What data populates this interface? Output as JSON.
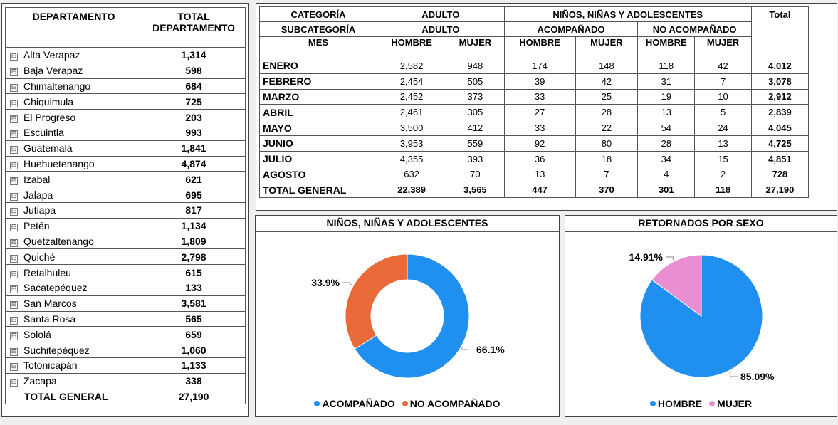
{
  "departments": {
    "header_name": "DEPARTAMENTO",
    "header_total": "TOTAL DEPARTAMENTO",
    "rows": [
      {
        "name": "Alta Verapaz",
        "total": "1,314"
      },
      {
        "name": "Baja Verapaz",
        "total": "598"
      },
      {
        "name": "Chimaltenango",
        "total": "684"
      },
      {
        "name": "Chiquimula",
        "total": "725"
      },
      {
        "name": "El Progreso",
        "total": "203"
      },
      {
        "name": "Escuintla",
        "total": "993"
      },
      {
        "name": "Guatemala",
        "total": "1,841"
      },
      {
        "name": "Huehuetenango",
        "total": "4,874"
      },
      {
        "name": "Izabal",
        "total": "621"
      },
      {
        "name": "Jalapa",
        "total": "695"
      },
      {
        "name": "Jutiapa",
        "total": "817"
      },
      {
        "name": "Petén",
        "total": "1,134"
      },
      {
        "name": "Quetzaltenango",
        "total": "1,809"
      },
      {
        "name": "Quiché",
        "total": "2,798"
      },
      {
        "name": "Retalhuleu",
        "total": "615"
      },
      {
        "name": "Sacatepéquez",
        "total": "133"
      },
      {
        "name": "San Marcos",
        "total": "3,581"
      },
      {
        "name": "Santa Rosa",
        "total": "565"
      },
      {
        "name": "Sololá",
        "total": "659"
      },
      {
        "name": "Suchitepéquez",
        "total": "1,060"
      },
      {
        "name": "Totonicapán",
        "total": "1,133"
      },
      {
        "name": "Zacapa",
        "total": "338"
      }
    ],
    "total_label": "TOTAL GENERAL",
    "total_value": "27,190",
    "expand_icon": "⊞"
  },
  "monthly": {
    "row1": {
      "label": "CATEGORÍA",
      "adulto": "ADULTO",
      "nna": "NIÑOS, NIÑAS Y ADOLESCENTES",
      "total": "Total"
    },
    "row2": {
      "label": "SUBCATEGORÍA",
      "adulto": "ADULTO",
      "acomp": "ACOMPAÑADO",
      "no_acomp": "NO ACOMPAÑADO"
    },
    "row3": {
      "label": "MES",
      "c1": "HOMBRE",
      "c2": "MUJER",
      "c3": "HOMBRE",
      "c4": "MUJER",
      "c5": "HOMBRE",
      "c6": "MUJER"
    },
    "rows": [
      {
        "mes": "ENERO",
        "v": [
          "2,582",
          "948",
          "174",
          "148",
          "118",
          "42"
        ],
        "total": "4,012"
      },
      {
        "mes": "FEBRERO",
        "v": [
          "2,454",
          "505",
          "39",
          "42",
          "31",
          "7"
        ],
        "total": "3,078"
      },
      {
        "mes": "MARZO",
        "v": [
          "2,452",
          "373",
          "33",
          "25",
          "19",
          "10"
        ],
        "total": "2,912"
      },
      {
        "mes": "ABRIL",
        "v": [
          "2,461",
          "305",
          "27",
          "28",
          "13",
          "5"
        ],
        "total": "2,839"
      },
      {
        "mes": "MAYO",
        "v": [
          "3,500",
          "412",
          "33",
          "22",
          "54",
          "24"
        ],
        "total": "4,045"
      },
      {
        "mes": "JUNIO",
        "v": [
          "3,953",
          "559",
          "92",
          "80",
          "28",
          "13"
        ],
        "total": "4,725"
      },
      {
        "mes": "JULIO",
        "v": [
          "4,355",
          "393",
          "36",
          "18",
          "34",
          "15"
        ],
        "total": "4,851"
      },
      {
        "mes": "AGOSTO",
        "v": [
          "632",
          "70",
          "13",
          "7",
          "4",
          "2"
        ],
        "total": "728"
      }
    ],
    "total_row": {
      "mes": "TOTAL GENERAL",
      "v": [
        "22,389",
        "3,565",
        "447",
        "370",
        "301",
        "118"
      ],
      "total": "27,190"
    }
  },
  "chart_data": [
    {
      "type": "pie",
      "variant": "donut",
      "title": "NIÑOS, NIÑAS Y ADOLESCENTES",
      "categories": [
        "ACOMPAÑADO",
        "NO ACOMPAÑADO"
      ],
      "values": [
        66.1,
        33.9
      ],
      "labels": [
        "66.1%",
        "33.9%"
      ],
      "colors": [
        "#1f8ff0",
        "#e86a38"
      ],
      "legend": "bottom"
    },
    {
      "type": "pie",
      "title": "RETORNADOS POR SEXO",
      "categories": [
        "HOMBRE",
        "MUJER"
      ],
      "values": [
        85.09,
        14.91
      ],
      "labels": [
        "85.09%",
        "14.91%"
      ],
      "colors": [
        "#1f8ff0",
        "#e98ed0"
      ],
      "legend": "bottom"
    }
  ]
}
